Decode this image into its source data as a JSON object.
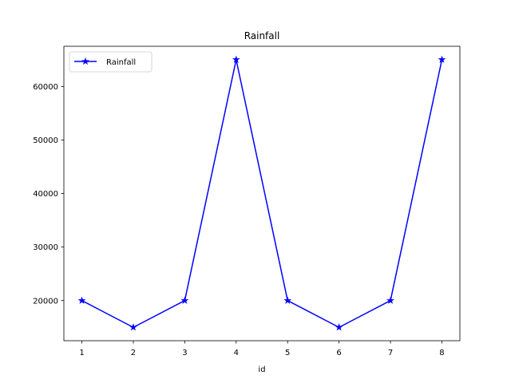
{
  "chart_data": {
    "type": "line",
    "title": "Rainfall",
    "xlabel": "id",
    "ylabel": "",
    "x": [
      1,
      2,
      3,
      4,
      5,
      6,
      7,
      8
    ],
    "series": [
      {
        "name": "Rainfall",
        "values": [
          20000,
          15000,
          20000,
          65000,
          20000,
          15000,
          20000,
          65000
        ],
        "color": "#0000ff",
        "marker": "star"
      }
    ],
    "xlim": [
      0.65,
      8.35
    ],
    "ylim": [
      12500,
      67500
    ],
    "xticks": [
      1,
      2,
      3,
      4,
      5,
      6,
      7,
      8
    ],
    "yticks": [
      20000,
      30000,
      40000,
      50000,
      60000
    ],
    "grid": false,
    "legend": {
      "placement": "top-left",
      "entries": [
        "Rainfall"
      ]
    }
  }
}
